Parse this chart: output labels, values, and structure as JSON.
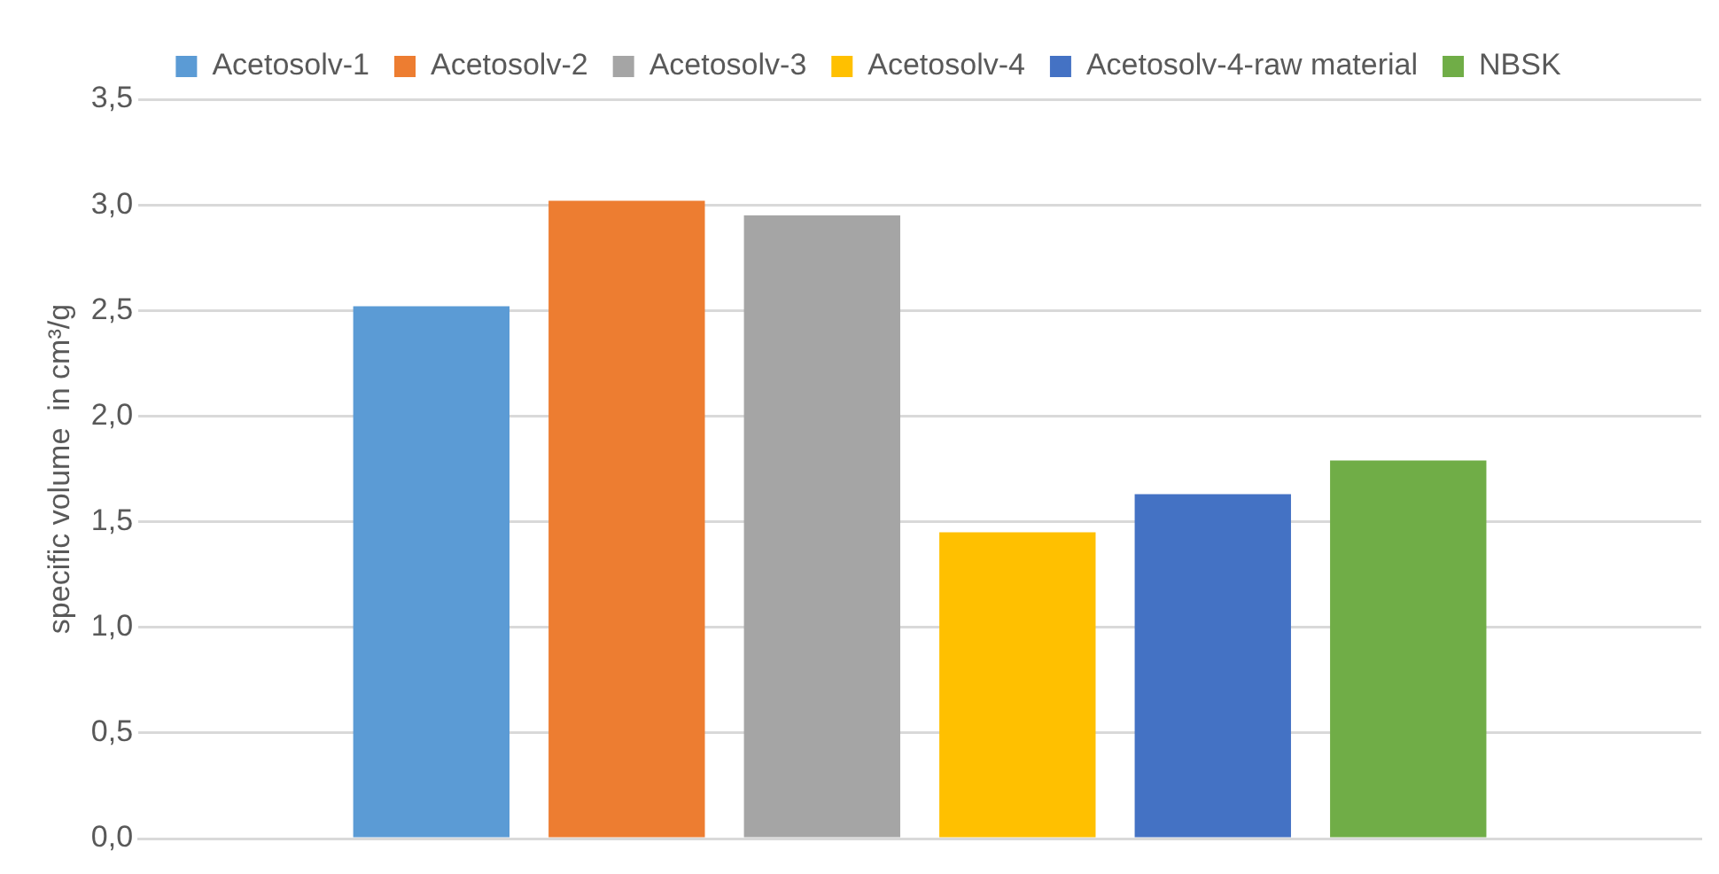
{
  "chart_data": {
    "type": "bar",
    "ylabel": "specific volume  in cm³/g",
    "categories": [
      null
    ],
    "series": [
      {
        "name": "Acetosolv-1",
        "color": "#5b9bd5",
        "values": [
          2.52
        ]
      },
      {
        "name": "Acetosolv-2",
        "color": "#ed7d31",
        "values": [
          3.02
        ]
      },
      {
        "name": "Acetosolv-3",
        "color": "#a5a5a5",
        "values": [
          2.95
        ]
      },
      {
        "name": "Acetosolv-4",
        "color": "#ffc000",
        "values": [
          1.45
        ]
      },
      {
        "name": "Acetosolv-4-raw material",
        "color": "#4472c4",
        "values": [
          1.63
        ]
      },
      {
        "name": "NBSK",
        "color": "#70ad47",
        "values": [
          1.79
        ]
      }
    ],
    "ylim": [
      0,
      3.5
    ],
    "yticks": [
      {
        "value": 0,
        "label": "0,0"
      },
      {
        "value": 0.5,
        "label": "0,5"
      },
      {
        "value": 1,
        "label": "1,0"
      },
      {
        "value": 1.5,
        "label": "1,5"
      },
      {
        "value": 2,
        "label": "2,0"
      },
      {
        "value": 2.5,
        "label": "2,5"
      },
      {
        "value": 3,
        "label": "3,0"
      },
      {
        "value": 3.5,
        "label": "3,5"
      }
    ],
    "grid": "y",
    "legend": "top",
    "tick_labels": "y"
  }
}
